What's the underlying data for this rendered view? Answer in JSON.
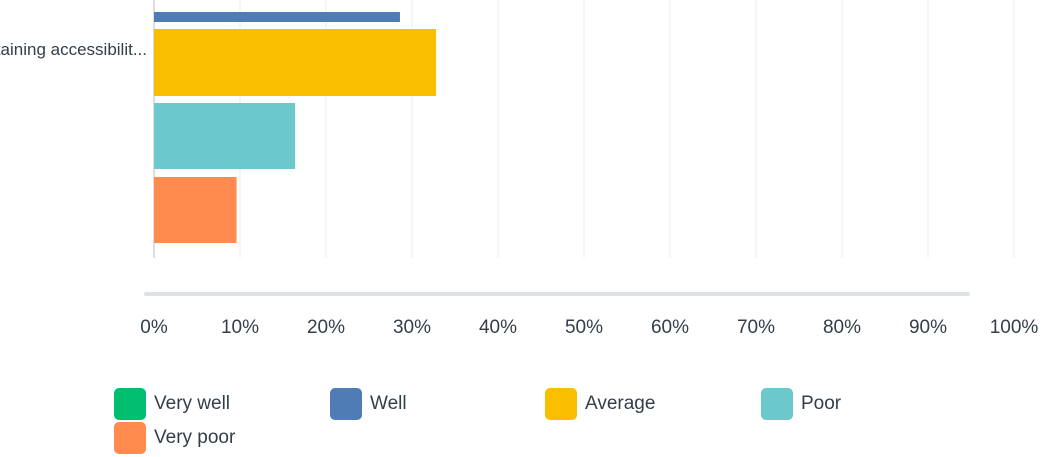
{
  "chart_data": {
    "type": "bar",
    "orientation": "horizontal",
    "categories": [
      "Maintaining accessibilit..."
    ],
    "series": [
      {
        "name": "Very well",
        "color": "#00bf6f",
        "values": [
          0
        ]
      },
      {
        "name": "Well",
        "color": "#507cb6",
        "values": [
          28.6
        ]
      },
      {
        "name": "Average",
        "color": "#f9be00",
        "values": [
          32.8
        ]
      },
      {
        "name": "Poor",
        "color": "#6bc8cd",
        "values": [
          16.4
        ]
      },
      {
        "name": "Very poor",
        "color": "#ff8b4f",
        "values": [
          9.6
        ]
      }
    ],
    "xlim": [
      0,
      100
    ],
    "xticks": [
      "0%",
      "10%",
      "20%",
      "30%",
      "40%",
      "50%",
      "60%",
      "70%",
      "80%",
      "90%",
      "100%"
    ],
    "grid": true,
    "legend_position": "bottom"
  }
}
